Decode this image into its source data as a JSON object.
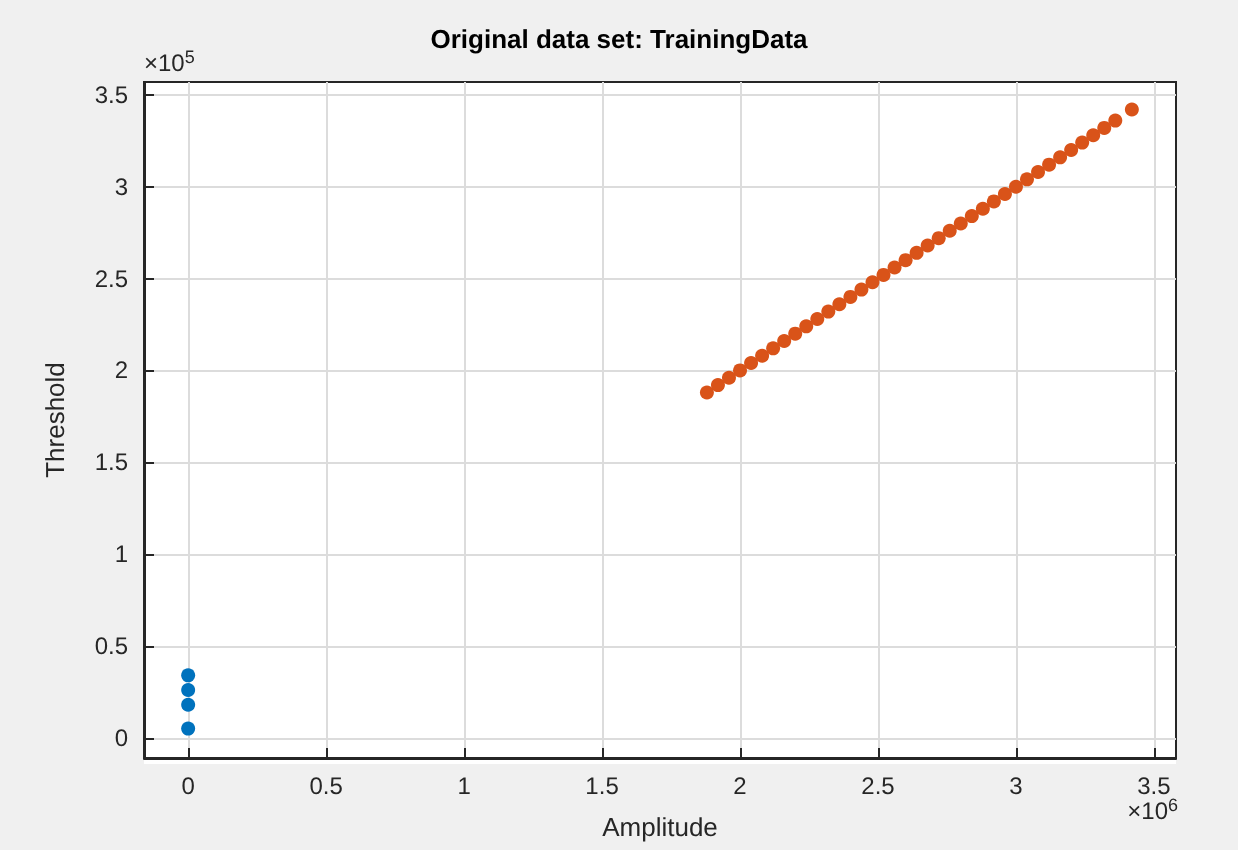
{
  "chart_data": {
    "type": "scatter",
    "title": "Original data set: TrainingData",
    "xlabel": "Amplitude",
    "ylabel": "Threshold",
    "annotations": [
      "×10$^{5}$",
      "×10$^{6}$"
    ],
    "xlim": [
      -0.16,
      3.58
    ],
    "ylim": [
      -0.11,
      3.57
    ],
    "xticks": [
      0,
      0.5,
      1,
      1.5,
      2,
      2.5,
      3,
      3.5
    ],
    "yticks": [
      0,
      0.5,
      1,
      1.5,
      2,
      2.5,
      3,
      3.5
    ],
    "grid": true,
    "marker": "circle",
    "series": [
      {
        "color": "#0072bd",
        "x": [
          0,
          0,
          0,
          0
        ],
        "values": [
          0.05,
          0.18,
          0.26,
          0.34
        ]
      },
      {
        "color": "#d95319",
        "x": [
          1.88,
          1.92,
          1.96,
          2.0,
          2.04,
          2.08,
          2.12,
          2.16,
          2.2,
          2.24,
          2.28,
          2.32,
          2.36,
          2.4,
          2.44,
          2.48,
          2.52,
          2.56,
          2.6,
          2.64,
          2.68,
          2.72,
          2.76,
          2.8,
          2.84,
          2.88,
          2.92,
          2.96,
          3.0,
          3.04,
          3.08,
          3.12,
          3.16,
          3.2,
          3.24,
          3.28,
          3.32,
          3.36,
          3.42
        ],
        "values": [
          1.88,
          1.92,
          1.96,
          2.0,
          2.04,
          2.08,
          2.12,
          2.16,
          2.2,
          2.24,
          2.28,
          2.32,
          2.36,
          2.4,
          2.44,
          2.48,
          2.52,
          2.56,
          2.6,
          2.64,
          2.68,
          2.72,
          2.76,
          2.8,
          2.84,
          2.88,
          2.92,
          2.96,
          3.0,
          3.04,
          3.08,
          3.12,
          3.16,
          3.2,
          3.24,
          3.28,
          3.32,
          3.36,
          3.42
        ]
      }
    ]
  }
}
